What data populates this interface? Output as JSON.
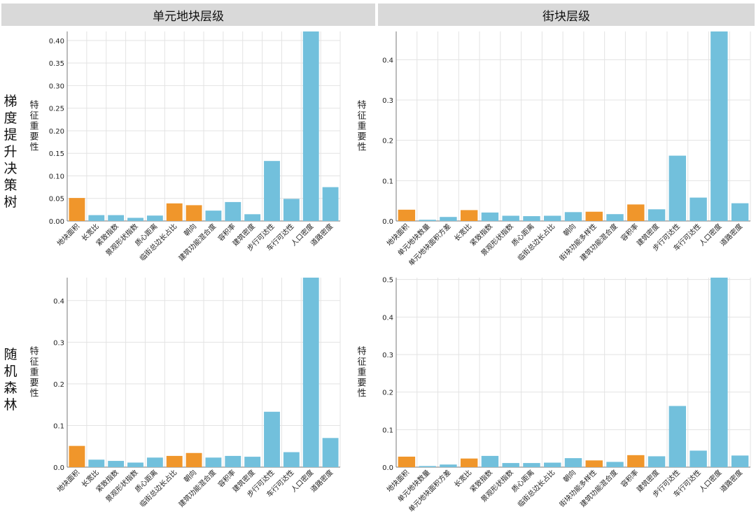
{
  "headers": {
    "left": "单元地块层级",
    "right": "街块层级"
  },
  "row_labels": {
    "top": "梯度提升决策树",
    "bottom": "随机森林"
  },
  "colors": {
    "orange": "#f0962b",
    "blue": "#72c0dc",
    "grid": "#e3e3e3",
    "axis": "#7a7a7a"
  },
  "chart_data": [
    {
      "id": "gbdt-parcel",
      "type": "bar",
      "ylabel": "特征重要性",
      "ylim": [
        0,
        0.42
      ],
      "yticks": [
        "0.00",
        "0.05",
        "0.10",
        "0.15",
        "0.20",
        "0.25",
        "0.30",
        "0.35",
        "0.40"
      ],
      "categories": [
        "地块面积",
        "长宽比",
        "紧致指数",
        "景观形状指数",
        "质心距离",
        "临街总边长占比",
        "朝向",
        "建筑功能混合度",
        "容积率",
        "建筑密度",
        "步行可达性",
        "车行可达性",
        "人口密度",
        "道路密度"
      ],
      "values": [
        0.051,
        0.013,
        0.013,
        0.007,
        0.012,
        0.039,
        0.035,
        0.023,
        0.042,
        0.015,
        0.133,
        0.049,
        0.42,
        0.075
      ],
      "colors": [
        "orange",
        "blue",
        "blue",
        "blue",
        "blue",
        "orange",
        "orange",
        "blue",
        "blue",
        "blue",
        "blue",
        "blue",
        "blue",
        "blue"
      ]
    },
    {
      "id": "gbdt-block",
      "type": "bar",
      "ylabel": "特征重要性",
      "ylim": [
        0,
        0.47
      ],
      "yticks": [
        "0.0",
        "0.1",
        "0.2",
        "0.3",
        "0.4"
      ],
      "categories": [
        "地块面积",
        "单元地块数量",
        "单元地块面积方差",
        "长宽比",
        "紧致指数",
        "景观形状指数",
        "质心距离",
        "临街总边长占比",
        "朝向",
        "街块功能多样性",
        "建筑功能混合度",
        "容积率",
        "建筑密度",
        "步行可达性",
        "车行可达性",
        "人口密度",
        "道路密度"
      ],
      "values": [
        0.028,
        0.003,
        0.01,
        0.027,
        0.021,
        0.013,
        0.012,
        0.013,
        0.022,
        0.023,
        0.017,
        0.041,
        0.029,
        0.162,
        0.058,
        0.47,
        0.044
      ],
      "colors": [
        "orange",
        "blue",
        "blue",
        "orange",
        "blue",
        "blue",
        "blue",
        "blue",
        "blue",
        "orange",
        "blue",
        "orange",
        "blue",
        "blue",
        "blue",
        "blue",
        "blue"
      ]
    },
    {
      "id": "rf-parcel",
      "type": "bar",
      "ylabel": "特征重要性",
      "ylim": [
        0,
        0.455
      ],
      "yticks": [
        "0.0",
        "0.1",
        "0.2",
        "0.3",
        "0.4"
      ],
      "categories": [
        "地块面积",
        "长宽比",
        "紧致指数",
        "景观形状指数",
        "质心距离",
        "临街总边长占比",
        "朝向",
        "建筑功能混合度",
        "容积率",
        "建筑密度",
        "步行可达性",
        "车行可达性",
        "人口密度",
        "道路密度"
      ],
      "values": [
        0.051,
        0.018,
        0.015,
        0.011,
        0.023,
        0.027,
        0.034,
        0.023,
        0.027,
        0.025,
        0.133,
        0.036,
        0.455,
        0.07
      ],
      "colors": [
        "orange",
        "blue",
        "blue",
        "blue",
        "blue",
        "orange",
        "orange",
        "blue",
        "blue",
        "blue",
        "blue",
        "blue",
        "blue",
        "blue"
      ]
    },
    {
      "id": "rf-block",
      "type": "bar",
      "ylabel": "特征重要性",
      "ylim": [
        0,
        0.505
      ],
      "yticks": [
        "0.0",
        "0.1",
        "0.2",
        "0.3",
        "0.4",
        "0.5"
      ],
      "categories": [
        "地块面积",
        "单元地块数量",
        "单元地块面积方差",
        "长宽比",
        "紧致指数",
        "景观形状指数",
        "质心距离",
        "临街总边长占比",
        "朝向",
        "街块功能多样性",
        "建筑功能混合度",
        "容积率",
        "建筑密度",
        "步行可达性",
        "车行可达性",
        "人口密度",
        "道路密度"
      ],
      "values": [
        0.028,
        0.003,
        0.007,
        0.023,
        0.03,
        0.011,
        0.011,
        0.012,
        0.024,
        0.018,
        0.014,
        0.032,
        0.029,
        0.163,
        0.044,
        0.505,
        0.031
      ],
      "colors": [
        "orange",
        "blue",
        "blue",
        "orange",
        "blue",
        "blue",
        "blue",
        "blue",
        "blue",
        "orange",
        "blue",
        "orange",
        "blue",
        "blue",
        "blue",
        "blue",
        "blue"
      ]
    }
  ]
}
